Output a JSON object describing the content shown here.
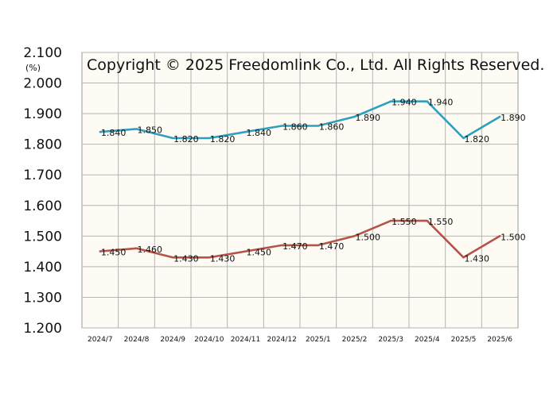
{
  "chart_data": {
    "type": "line",
    "title": "",
    "xlabel": "",
    "ylabel": "",
    "unit": "(%)",
    "watermark": "Copyright © 2025 Freedomlink Co., Ltd. All Rights Reserved.",
    "categories": [
      "2024/7",
      "2024/8",
      "2024/9",
      "2024/10",
      "2024/11",
      "2024/12",
      "2025/1",
      "2025/2",
      "2025/3",
      "2025/4",
      "2025/5",
      "2025/6"
    ],
    "ylim": [
      1.2,
      2.1
    ],
    "yticks": [
      "1.200",
      "1.300",
      "1.400",
      "1.500",
      "1.600",
      "1.700",
      "1.800",
      "1.900",
      "2.000",
      "2.100"
    ],
    "grid": true,
    "plot_background": "#fdfbf3",
    "grid_color": "#b5b5b5",
    "series": [
      {
        "color": "#2e9fbf",
        "values": [
          1.84,
          1.85,
          1.82,
          1.82,
          1.84,
          1.86,
          1.86,
          1.89,
          1.94,
          1.94,
          1.82,
          1.89
        ],
        "labels": [
          "1.840",
          "1.850",
          "1.820",
          "1.820",
          "1.840",
          "1.860",
          "1.860",
          "1.890",
          "1.940",
          "1.940",
          "1.820",
          "1.890"
        ]
      },
      {
        "color": "#b5524a",
        "values": [
          1.45,
          1.46,
          1.43,
          1.43,
          1.45,
          1.47,
          1.47,
          1.5,
          1.55,
          1.55,
          1.43,
          1.5
        ],
        "labels": [
          "1.450",
          "1.460",
          "1.430",
          "1.430",
          "1.450",
          "1.470",
          "1.470",
          "1.500",
          "1.550",
          "1.550",
          "1.430",
          "1.500"
        ]
      }
    ]
  }
}
